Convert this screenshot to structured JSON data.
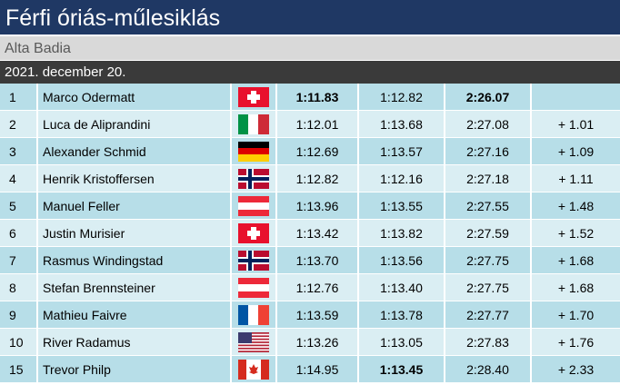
{
  "header": {
    "title": "Férfi óriás-műlesiklás",
    "subtitle": "Alta Badia",
    "date": "2021. december 20."
  },
  "table": {
    "rows": [
      [
        1,
        "Marco Odermatt",
        "1:11.83",
        "1:12.82",
        "2:26.07",
        null
      ],
      [
        2,
        "Luca de Aliprandini",
        "1:12.01",
        "1:13.68",
        "2:27.08",
        "+ 1.01"
      ],
      [
        3,
        "Alexander Schmid",
        "1:12.69",
        "1:13.57",
        "2:27.16",
        "+ 1.09"
      ],
      [
        4,
        "Henrik Kristoffersen",
        "1:12.82",
        "1:12.16",
        "2:27.18",
        "+ 1.11"
      ],
      [
        5,
        "Manuel Feller",
        "1:13.96",
        "1:13.55",
        "2:27.55",
        "+ 1.48"
      ],
      [
        6,
        "Justin Murisier",
        "1:13.42",
        "1:13.82",
        "2:27.59",
        "+ 1.52"
      ],
      [
        7,
        "Rasmus Windingstad",
        "1:13.70",
        "1:13.56",
        "2:27.75",
        "+ 1.68"
      ],
      [
        8,
        "Stefan Brennsteiner",
        "1:12.76",
        "1:13.40",
        "2:27.75",
        "+ 1.68"
      ],
      [
        9,
        "Mathieu Faivre",
        "1:13.59",
        "1:13.78",
        "2:27.77",
        "+ 1.70"
      ],
      [
        10,
        "River Radamus",
        "1:13.26",
        "1:13.05",
        "2:27.83",
        "+ 1.76"
      ],
      [
        15,
        "Trevor Philp",
        "1:14.95",
        "1:13.45",
        "2:28.40",
        "+ 2.33"
      ]
    ]
  }
}
